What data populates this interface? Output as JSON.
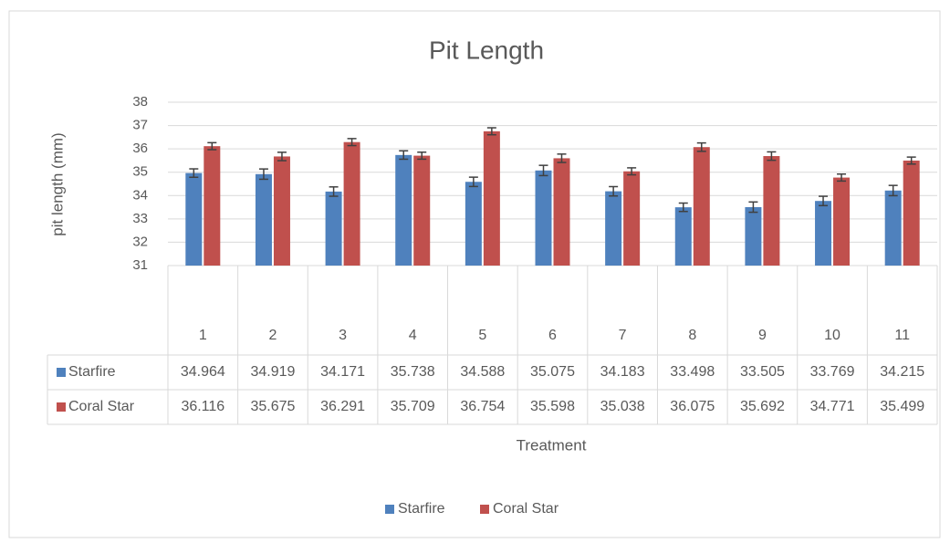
{
  "chart_data": {
    "type": "bar",
    "title": "Pit Length",
    "x_label": "Treatment",
    "y_label": "pit length (mm)",
    "categories": [
      "1",
      "2",
      "3",
      "4",
      "5",
      "6",
      "7",
      "8",
      "9",
      "10",
      "11"
    ],
    "series": [
      {
        "name": "Starfire",
        "color": "#4f81bd",
        "values": [
          34.964,
          34.919,
          34.171,
          35.738,
          34.588,
          35.075,
          34.183,
          33.498,
          33.505,
          33.769,
          34.215
        ],
        "errors": [
          0.18,
          0.22,
          0.2,
          0.18,
          0.2,
          0.22,
          0.2,
          0.18,
          0.22,
          0.2,
          0.22
        ]
      },
      {
        "name": "Coral Star",
        "color": "#c0504d",
        "values": [
          36.116,
          35.675,
          36.291,
          35.709,
          36.754,
          35.598,
          35.038,
          36.075,
          35.692,
          34.771,
          35.499
        ],
        "errors": [
          0.15,
          0.18,
          0.15,
          0.15,
          0.15,
          0.18,
          0.15,
          0.18,
          0.18,
          0.15,
          0.15
        ]
      }
    ],
    "ylim": [
      31,
      38
    ],
    "yticks": [
      31,
      32,
      33,
      34,
      35,
      36,
      37,
      38
    ],
    "grid": true,
    "legend": "bottom"
  }
}
